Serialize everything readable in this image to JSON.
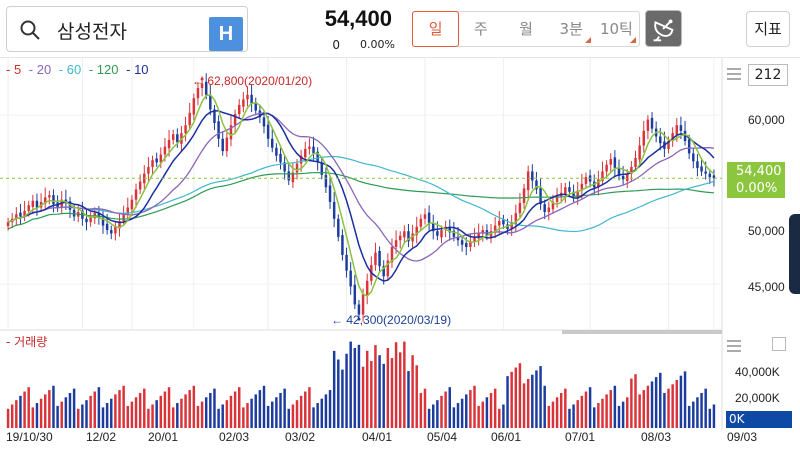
{
  "header": {
    "search_text": "삼성전자",
    "h_button": "H",
    "price": "54,400",
    "change": "0",
    "change_pct": "0.00%",
    "tabs": [
      {
        "label": "일",
        "selected": true
      },
      {
        "label": "주",
        "selected": false
      },
      {
        "label": "월",
        "selected": false
      },
      {
        "label": "3분",
        "selected": false,
        "marked": true
      },
      {
        "label": "10틱",
        "selected": false,
        "marked": true
      }
    ],
    "indicator_button": "지표"
  },
  "legend": [
    {
      "label": "- 5",
      "color": "#d42c2c"
    },
    {
      "label": "- 20",
      "color": "#8b66b8"
    },
    {
      "label": "- 60",
      "color": "#3fb8cf"
    },
    {
      "label": "- 120",
      "color": "#2e9a55"
    },
    {
      "label": "- 10",
      "color": "#1b2fa0"
    }
  ],
  "view_count": "212",
  "price_tag": {
    "price": "54,400",
    "pct": "0.00%"
  },
  "volume_title": "- 거래량",
  "volume_tag": "0K",
  "annotations": {
    "high": "62,800(2020/01/20)",
    "low": "42,300(2020/03/19)"
  },
  "y_axis_labels": [
    "60,000",
    "50,000",
    "45,000"
  ],
  "volume_axis_labels": [
    "40,000K",
    "20,000K"
  ],
  "x_axis_labels": [
    "19/10/30",
    "12/02",
    "20/01",
    "02/03",
    "03/02",
    "04/01",
    "05/04",
    "06/01",
    "07/01",
    "08/03",
    "09/03"
  ],
  "colors": {
    "up": "#d8343a",
    "down": "#1c3d9e",
    "ma5": "#8bc33e",
    "accent": "#e05a3a"
  },
  "chart_data": {
    "type": "candlestick",
    "y_range": [
      42000,
      64000
    ],
    "volume_range_k": [
      0,
      55000
    ],
    "closes": [
      50500,
      50800,
      51200,
      51000,
      51500,
      52000,
      52400,
      51800,
      52300,
      52700,
      52900,
      52100,
      51800,
      52500,
      52200,
      51600,
      51000,
      51400,
      50800,
      50500,
      51000,
      51300,
      50900,
      50200,
      49800,
      49500,
      50100,
      50600,
      51200,
      51800,
      52500,
      53400,
      54100,
      54800,
      55400,
      56000,
      55800,
      56500,
      57200,
      57800,
      58300,
      57600,
      58400,
      59100,
      60200,
      61500,
      62400,
      62800,
      61800,
      60500,
      59300,
      57900,
      56800,
      58000,
      59100,
      60100,
      60900,
      61400,
      61800,
      61000,
      60400,
      59800,
      59000,
      57900,
      57100,
      56400,
      55800,
      55000,
      54200,
      54900,
      55700,
      56400,
      57000,
      57200,
      56600,
      55800,
      54700,
      53600,
      52300,
      50800,
      49200,
      47600,
      46200,
      44800,
      43200,
      42300,
      44100,
      45300,
      46700,
      47800,
      46600,
      45700,
      47100,
      48300,
      48900,
      49300,
      49700,
      48800,
      49500,
      50100,
      50800,
      51200,
      50400,
      49700,
      49300,
      49800,
      50100,
      49600,
      49200,
      48900,
      48500,
      48300,
      48800,
      49200,
      49500,
      49800,
      49300,
      49700,
      50200,
      50600,
      50300,
      49900,
      50500,
      51300,
      52200,
      53500,
      55000,
      54200,
      53400,
      52100,
      51400,
      51800,
      52300,
      52800,
      53100,
      53600,
      53200,
      52800,
      53300,
      53900,
      54500,
      54100,
      53600,
      54300,
      55000,
      55600,
      56100,
      55300,
      54600,
      54300,
      54800,
      55400,
      56200,
      57300,
      58600,
      59600,
      58800,
      58100,
      57500,
      57000,
      57700,
      58400,
      59100,
      58600,
      57700,
      56600,
      55900,
      55300,
      55000,
      54800,
      54500,
      54400
    ]
  }
}
